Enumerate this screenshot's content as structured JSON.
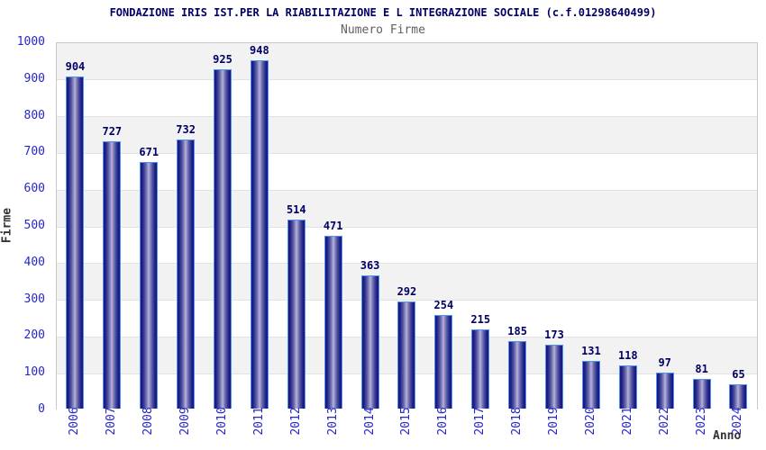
{
  "header": {
    "title": "FONDAZIONE IRIS IST.PER LA RIABILITAZIONE E L INTEGRAZIONE SOCIALE (c.f.01298640499)",
    "subtitle": "Numero Firme"
  },
  "chart_data": {
    "type": "bar",
    "title": "FONDAZIONE IRIS IST.PER LA RIABILITAZIONE E L INTEGRAZIONE SOCIALE (c.f.01298640499)",
    "subtitle": "Numero Firme",
    "xlabel": "Anno",
    "ylabel": "Firme",
    "categories": [
      "2006",
      "2007",
      "2008",
      "2009",
      "2010",
      "2011",
      "2012",
      "2013",
      "2014",
      "2015",
      "2016",
      "2017",
      "2018",
      "2019",
      "2020",
      "2021",
      "2022",
      "2023",
      "2024"
    ],
    "values": [
      904,
      727,
      671,
      732,
      925,
      948,
      514,
      471,
      363,
      292,
      254,
      215,
      185,
      173,
      131,
      118,
      97,
      81,
      65
    ],
    "ylim": [
      0,
      1000
    ],
    "ytick_step": 100,
    "yticks": [
      0,
      100,
      200,
      300,
      400,
      500,
      600,
      700,
      800,
      900,
      1000
    ],
    "grid": "alternating-horizontal-bands",
    "legend": "none",
    "colors": {
      "band_gray": "#f2f2f2",
      "band_white": "#ffffff",
      "gridline": "#e2e2e2",
      "plot_border": "#c9c9c9",
      "bar_edge_dark": "#14147a",
      "bar_center_light": "#b8b8de",
      "bar_border": "#4d94f0",
      "tick_label_blue": "#2626cc",
      "value_label_navy": "#000066",
      "title_navy": "#000066",
      "subtitle_gray": "#606060",
      "axis_label_dark": "#333333"
    }
  }
}
